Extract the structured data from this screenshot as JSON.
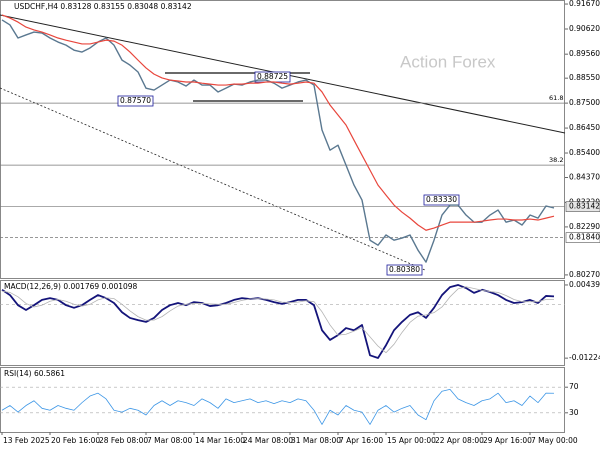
{
  "chart_data": [
    {
      "type": "line",
      "title": "USDCHF,H4  0.83128 0.83155 0.83048 0.83142",
      "watermark": "Action Forex",
      "ylim": [
        0.8014,
        0.9184
      ],
      "yticks": [
        {
          "value": 0.9167,
          "label": "0.91670"
        },
        {
          "value": 0.9062,
          "label": "0.90620"
        },
        {
          "value": 0.8956,
          "label": "0.89560"
        },
        {
          "value": 0.8855,
          "label": "0.88550"
        },
        {
          "value": 0.875,
          "label": "0.87500"
        },
        {
          "value": 0.8645,
          "label": "0.86450"
        },
        {
          "value": 0.854,
          "label": "0.85400"
        },
        {
          "value": 0.8437,
          "label": "0.84370"
        },
        {
          "value": 0.8332,
          "label": "0.83320"
        },
        {
          "value": 0.8229,
          "label": "0.82290"
        },
        {
          "value": 0.8027,
          "label": "0.80270"
        }
      ],
      "levels": [
        {
          "value": 0.875,
          "label": "61.8"
        },
        {
          "value": 0.8489,
          "label": "38.2"
        }
      ],
      "price_lines": [
        {
          "value": 0.83142,
          "label": "0.83142",
          "style": "solid"
        },
        {
          "value": 0.8184,
          "label": "0.81840",
          "style": "dashed"
        }
      ],
      "annotations": [
        "0.87570",
        "0.88725",
        "0.83330",
        "0.80380"
      ],
      "series": [
        {
          "color": "#5a7890",
          "values": [
            0.91,
            0.9079,
            0.9024,
            0.9037,
            0.9049,
            0.9045,
            0.9024,
            0.9007,
            0.8994,
            0.8973,
            0.8965,
            0.8982,
            0.9007,
            0.9024,
            0.8994,
            0.8931,
            0.891,
            0.8881,
            0.8813,
            0.8805,
            0.8826,
            0.8847,
            0.8839,
            0.8822,
            0.8847,
            0.8826,
            0.8826,
            0.8797,
            0.8813,
            0.883,
            0.8826,
            0.8839,
            0.8847,
            0.8847,
            0.8834,
            0.8813,
            0.8826,
            0.8839,
            0.8847,
            0.8826,
            0.8637,
            0.8552,
            0.8573,
            0.8489,
            0.8405,
            0.8342,
            0.8173,
            0.8152,
            0.8195,
            0.8173,
            0.8182,
            0.8195,
            0.8131,
            0.8081,
            0.8173,
            0.8279,
            0.8321,
            0.8321,
            0.8279,
            0.8249,
            0.8249,
            0.8279,
            0.83,
            0.8249,
            0.8258,
            0.8237,
            0.8279,
            0.8266,
            0.8317,
            0.8309
          ]
        },
        {
          "color": "#e8463c",
          "values": [
            0.9121,
            0.9108,
            0.9091,
            0.907,
            0.9058,
            0.9049,
            0.9037,
            0.9024,
            0.9015,
            0.9007,
            0.8999,
            0.8999,
            0.9007,
            0.9015,
            0.9011,
            0.8994,
            0.8965,
            0.8931,
            0.8898,
            0.8872,
            0.8856,
            0.8847,
            0.8843,
            0.8839,
            0.8839,
            0.8834,
            0.883,
            0.8826,
            0.8826,
            0.883,
            0.883,
            0.8834,
            0.8834,
            0.8839,
            0.8839,
            0.8834,
            0.883,
            0.8834,
            0.8839,
            0.8834,
            0.8797,
            0.8742,
            0.87,
            0.8658,
            0.8594,
            0.8531,
            0.8468,
            0.8405,
            0.8363,
            0.8321,
            0.8291,
            0.8266,
            0.8237,
            0.8215,
            0.8224,
            0.8237,
            0.8249,
            0.8249,
            0.8249,
            0.8249,
            0.8253,
            0.8258,
            0.8262,
            0.8262,
            0.8258,
            0.8258,
            0.8262,
            0.8258,
            0.8266,
            0.8274
          ]
        }
      ]
    },
    {
      "type": "line",
      "title": "MACD(12,26,9) 0.001769 0.001098",
      "ylim": [
        -0.0138,
        0.0053
      ],
      "yticks": [
        0.004399,
        -0.012241
      ],
      "zero_line": true,
      "series": [
        {
          "color": "#14147a",
          "values": [
            0.0033,
            0.0021,
            -0.0002,
            -0.0013,
            -0.0002,
            0.001,
            0.0014,
            0.001,
            -0.0002,
            -0.0008,
            -0.0002,
            0.001,
            0.0021,
            0.0014,
            0.0003,
            -0.0018,
            -0.0031,
            -0.0036,
            -0.004,
            -0.0031,
            -0.0013,
            -0.0002,
            0.0003,
            -0.0002,
            0.0005,
            0.0003,
            -0.0004,
            -0.0002,
            0.0003,
            0.001,
            0.0014,
            0.0012,
            0.0014,
            0.001,
            0.0005,
            0.0001,
            0.0005,
            0.001,
            0.001,
            -0.0002,
            -0.0059,
            -0.0081,
            -0.007,
            -0.0054,
            -0.0059,
            -0.0047,
            -0.0116,
            -0.0122,
            -0.0093,
            -0.0059,
            -0.004,
            -0.0024,
            -0.0018,
            -0.0031,
            -0.0008,
            0.0021,
            0.0039,
            0.0044,
            0.0037,
            0.0026,
            0.0033,
            0.0028,
            0.0021,
            0.001,
            0.0003,
            0.0005,
            0.001,
            0.0003,
            0.0019,
            0.0018
          ]
        },
        {
          "color": "#b4b4b4",
          "values": [
            0.003,
            0.0027,
            0.0017,
            0.0002,
            -0.0006,
            -0.0002,
            0.0007,
            0.0011,
            0.0007,
            0.0,
            -0.0004,
            0.0,
            0.001,
            0.0015,
            0.0013,
            0.0,
            -0.0015,
            -0.0028,
            -0.0036,
            -0.0036,
            -0.0028,
            -0.0015,
            -0.0004,
            0.0,
            0.0002,
            0.0002,
            0.0001,
            0.0,
            0.0,
            0.0004,
            0.0009,
            0.0012,
            0.0013,
            0.0012,
            0.001,
            0.0005,
            0.0004,
            0.0005,
            0.0008,
            0.0006,
            -0.0017,
            -0.0047,
            -0.007,
            -0.0068,
            -0.0061,
            -0.0053,
            -0.0074,
            -0.0095,
            -0.011,
            -0.0091,
            -0.0064,
            -0.0041,
            -0.0027,
            -0.0024,
            -0.0019,
            -0.0006,
            0.0017,
            0.0035,
            0.004,
            0.0036,
            0.0032,
            0.0029,
            0.0027,
            0.002,
            0.0011,
            0.0006,
            0.0006,
            0.0006,
            0.0011,
            0.0011
          ]
        }
      ]
    },
    {
      "type": "line",
      "title": "RSI(14) 60.5861",
      "ylim": [
        0,
        100
      ],
      "yticks": [
        70,
        30
      ],
      "grid": true,
      "categories": [
        "13 Feb 2025",
        null,
        null,
        null,
        null,
        null,
        "20 Feb 16:00",
        null,
        null,
        null,
        null,
        null,
        "28 Feb 08:00",
        null,
        null,
        null,
        null,
        null,
        "7 Mar 08:00",
        null,
        null,
        null,
        null,
        null,
        "14 Mar 16:00",
        null,
        null,
        null,
        null,
        null,
        "24 Mar 08:00",
        null,
        null,
        null,
        null,
        null,
        "31 Mar 08:00",
        null,
        null,
        null,
        null,
        null,
        "7 Apr 16:00",
        null,
        null,
        null,
        null,
        null,
        "15 Apr 00:00",
        null,
        null,
        null,
        null,
        null,
        "22 Apr 08:00",
        null,
        null,
        null,
        null,
        null,
        "29 Apr 16:00",
        null,
        null,
        null,
        null,
        null,
        "7 May 00:00",
        null,
        null,
        null
      ],
      "series": [
        {
          "color": "#3c96e6",
          "values": [
            34.0,
            41.4,
            31.1,
            41.4,
            48.8,
            37.0,
            34.0,
            41.4,
            37.0,
            34.0,
            45.9,
            56.2,
            60.7,
            51.8,
            34.0,
            31.1,
            37.0,
            34.0,
            26.6,
            41.4,
            48.8,
            41.4,
            48.8,
            45.9,
            41.4,
            51.8,
            45.9,
            37.0,
            51.8,
            45.9,
            48.8,
            51.8,
            45.9,
            48.8,
            44.4,
            48.8,
            45.9,
            51.8,
            48.8,
            34.0,
            11.8,
            34.0,
            26.6,
            41.4,
            34.0,
            31.1,
            11.8,
            34.0,
            41.4,
            31.1,
            37.0,
            41.4,
            26.6,
            19.2,
            48.8,
            63.6,
            66.6,
            51.8,
            45.9,
            41.4,
            48.8,
            51.8,
            60.7,
            45.9,
            48.8,
            41.4,
            56.2,
            45.9,
            60.7,
            60.6
          ]
        }
      ]
    }
  ]
}
